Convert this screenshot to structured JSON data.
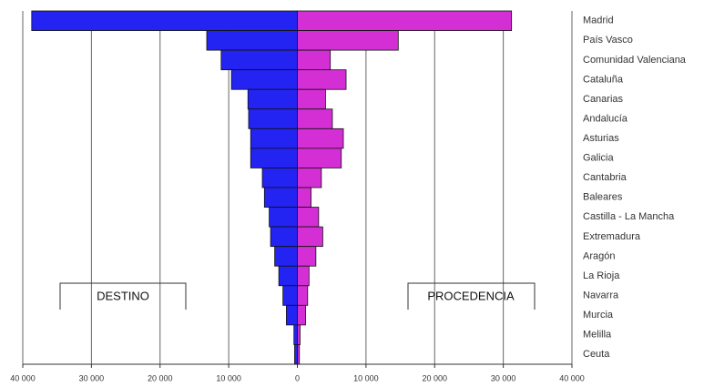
{
  "chart_data": {
    "type": "butterfly",
    "categories": [
      "Madrid",
      "País Vasco",
      "Comunidad Valenciana",
      "Cataluña",
      "Canarias",
      "Andalucía",
      "Asturias",
      "Galicia",
      "Cantabria",
      "Baleares",
      "Castilla - La Mancha",
      "Extremadura",
      "Aragón",
      "La Rioja",
      "Navarra",
      "Murcia",
      "Melilla",
      "Ceuta"
    ],
    "series": [
      {
        "name": "DESTINO",
        "color": "#2323f2",
        "values": [
          -38700,
          -13200,
          -11100,
          -9600,
          -7200,
          -7100,
          -6800,
          -6800,
          -5100,
          -4800,
          -4100,
          -3900,
          -3300,
          -2700,
          -2100,
          -1600,
          -500,
          -400
        ]
      },
      {
        "name": "PROCEDENCIA",
        "color": "#d42fd4",
        "values": [
          31200,
          14700,
          4800,
          7100,
          4100,
          5100,
          6700,
          6400,
          3500,
          2000,
          3100,
          3700,
          2700,
          1700,
          1500,
          1200,
          400,
          300
        ]
      }
    ],
    "xlim": [
      -40000,
      40000
    ],
    "xticks": [
      {
        "value": -40000,
        "label": "40 000"
      },
      {
        "value": -30000,
        "label": "30 000"
      },
      {
        "value": -20000,
        "label": "20 000"
      },
      {
        "value": -10000,
        "label": "10 000"
      },
      0,
      {
        "value": 10000,
        "label": "10 000"
      },
      {
        "value": 20000,
        "label": "20 000"
      },
      {
        "value": 30000,
        "label": "30 000"
      },
      {
        "value": 40000,
        "label": "40 000"
      }
    ],
    "grid": true
  }
}
